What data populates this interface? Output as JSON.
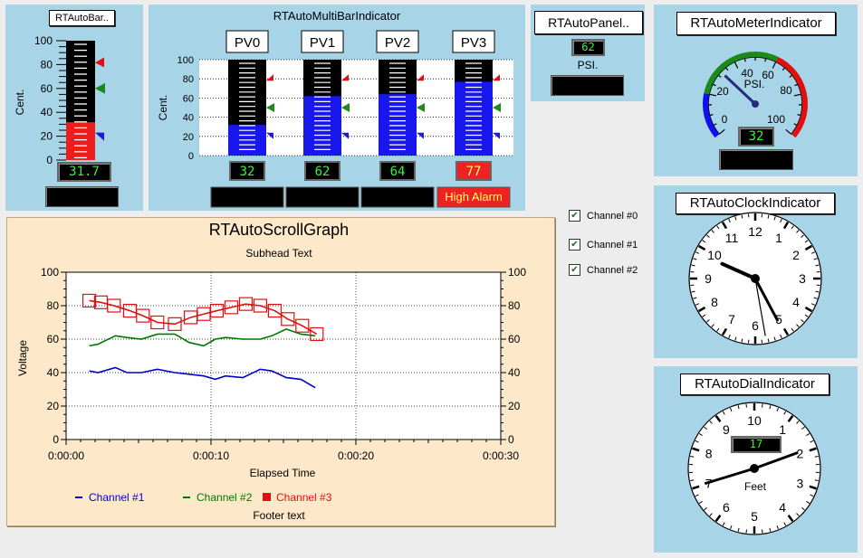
{
  "bar_indicator": {
    "title": "RTAutoBar..",
    "unit_label": "Cent.",
    "ticks": [
      "100",
      "80",
      "60",
      "40",
      "20",
      "0"
    ],
    "value": 31.7,
    "value_text": "31.7",
    "status_text": ""
  },
  "multibar": {
    "title": "RTAutoMultiBarIndicator",
    "unit_label": "Cent.",
    "ticks": [
      "100",
      "80",
      "60",
      "40",
      "20",
      "0"
    ],
    "channels": [
      {
        "label": "PV0",
        "value": 32,
        "value_text": "32",
        "status": "",
        "alarm": false
      },
      {
        "label": "PV1",
        "value": 62,
        "value_text": "62",
        "status": "",
        "alarm": false
      },
      {
        "label": "PV2",
        "value": 64,
        "value_text": "64",
        "status": "",
        "alarm": false
      },
      {
        "label": "PV3",
        "value": 77,
        "value_text": "77",
        "status": "High Alarm",
        "alarm": true
      }
    ]
  },
  "auto_panel": {
    "title": "RTAutoPanel..",
    "value_text": "62",
    "unit": "PSI.",
    "status_text": ""
  },
  "meter": {
    "title": "RTAutoMeterIndicator",
    "scale_labels": [
      "0",
      "20",
      "40",
      "60",
      "80",
      "100"
    ],
    "unit": "PSI.",
    "value": 32,
    "value_text": "32",
    "status_text": ""
  },
  "clock": {
    "title": "RTAutoClockIndicator",
    "numbers": [
      "12",
      "1",
      "2",
      "3",
      "4",
      "5",
      "6",
      "7",
      "8",
      "9",
      "10",
      "11"
    ]
  },
  "dial": {
    "title": "RTAutoDialIndicator",
    "numbers": [
      "10",
      "1",
      "2",
      "3",
      "4",
      "5",
      "6",
      "7",
      "8",
      "9"
    ],
    "unit": "Feet",
    "value_text": "17"
  },
  "scroll_graph": {
    "title": "RTAutoScrollGraph",
    "subhead": "Subhead Text",
    "footer": "Footer text",
    "xlabel": "Elapsed Time",
    "ylabel": "Voltage",
    "y_ticks": [
      "100",
      "80",
      "60",
      "40",
      "20",
      "0"
    ],
    "x_ticks": [
      "0:00:00",
      "0:00:10",
      "0:00:20",
      "0:00:30"
    ]
  },
  "checkboxes": [
    {
      "label": "Channel #0",
      "checked": true
    },
    {
      "label": "Channel #1",
      "checked": true
    },
    {
      "label": "Channel #2",
      "checked": true
    }
  ],
  "chart_data": {
    "type": "line",
    "title": "RTAutoScrollGraph",
    "subtitle": "Subhead Text",
    "xlabel": "Elapsed Time",
    "ylabel": "Voltage",
    "xlim": [
      0,
      30
    ],
    "ylim": [
      0,
      100
    ],
    "x_tick_labels": [
      "0:00:00",
      "0:00:10",
      "0:00:20",
      "0:00:30"
    ],
    "y_tick_labels": [
      "0",
      "20",
      "40",
      "60",
      "80",
      "100"
    ],
    "grid": true,
    "legend_position": "bottom",
    "series": [
      {
        "name": "Channel #1",
        "color": "#0000cc",
        "marker": "none",
        "x": [
          1.6,
          2.2,
          3.4,
          4.2,
          5.2,
          6.3,
          7.5,
          8.5,
          9.5,
          10.3,
          11,
          12.2,
          13.4,
          14.2,
          15.2,
          16.2,
          17.2
        ],
        "values": [
          41,
          40,
          43,
          40,
          40,
          42,
          40,
          39,
          38,
          36,
          38,
          37,
          42,
          41,
          37,
          36,
          31
        ]
      },
      {
        "name": "Channel #2",
        "color": "#007700",
        "marker": "none",
        "x": [
          1.6,
          2.2,
          3.4,
          4.2,
          5.2,
          6.3,
          7.5,
          8.5,
          9.5,
          10.3,
          11,
          12.2,
          13.4,
          14.2,
          15.2,
          16.2,
          17.2
        ],
        "values": [
          56,
          57,
          62,
          61,
          60,
          63,
          63,
          58,
          56,
          60,
          61,
          60,
          60,
          62,
          66,
          63,
          62
        ]
      },
      {
        "name": "Channel #3",
        "color": "#dd1111",
        "marker": "square",
        "x": [
          1.6,
          2.4,
          3.3,
          4.4,
          5.3,
          6.3,
          7.5,
          8.6,
          9.5,
          10.4,
          11.4,
          12.4,
          13.4,
          14.4,
          15.3,
          16.3,
          17.3
        ],
        "values": [
          83,
          82,
          80,
          77,
          74,
          70,
          69,
          73,
          75,
          77,
          79,
          81,
          80,
          77,
          72,
          68,
          63
        ]
      }
    ]
  }
}
